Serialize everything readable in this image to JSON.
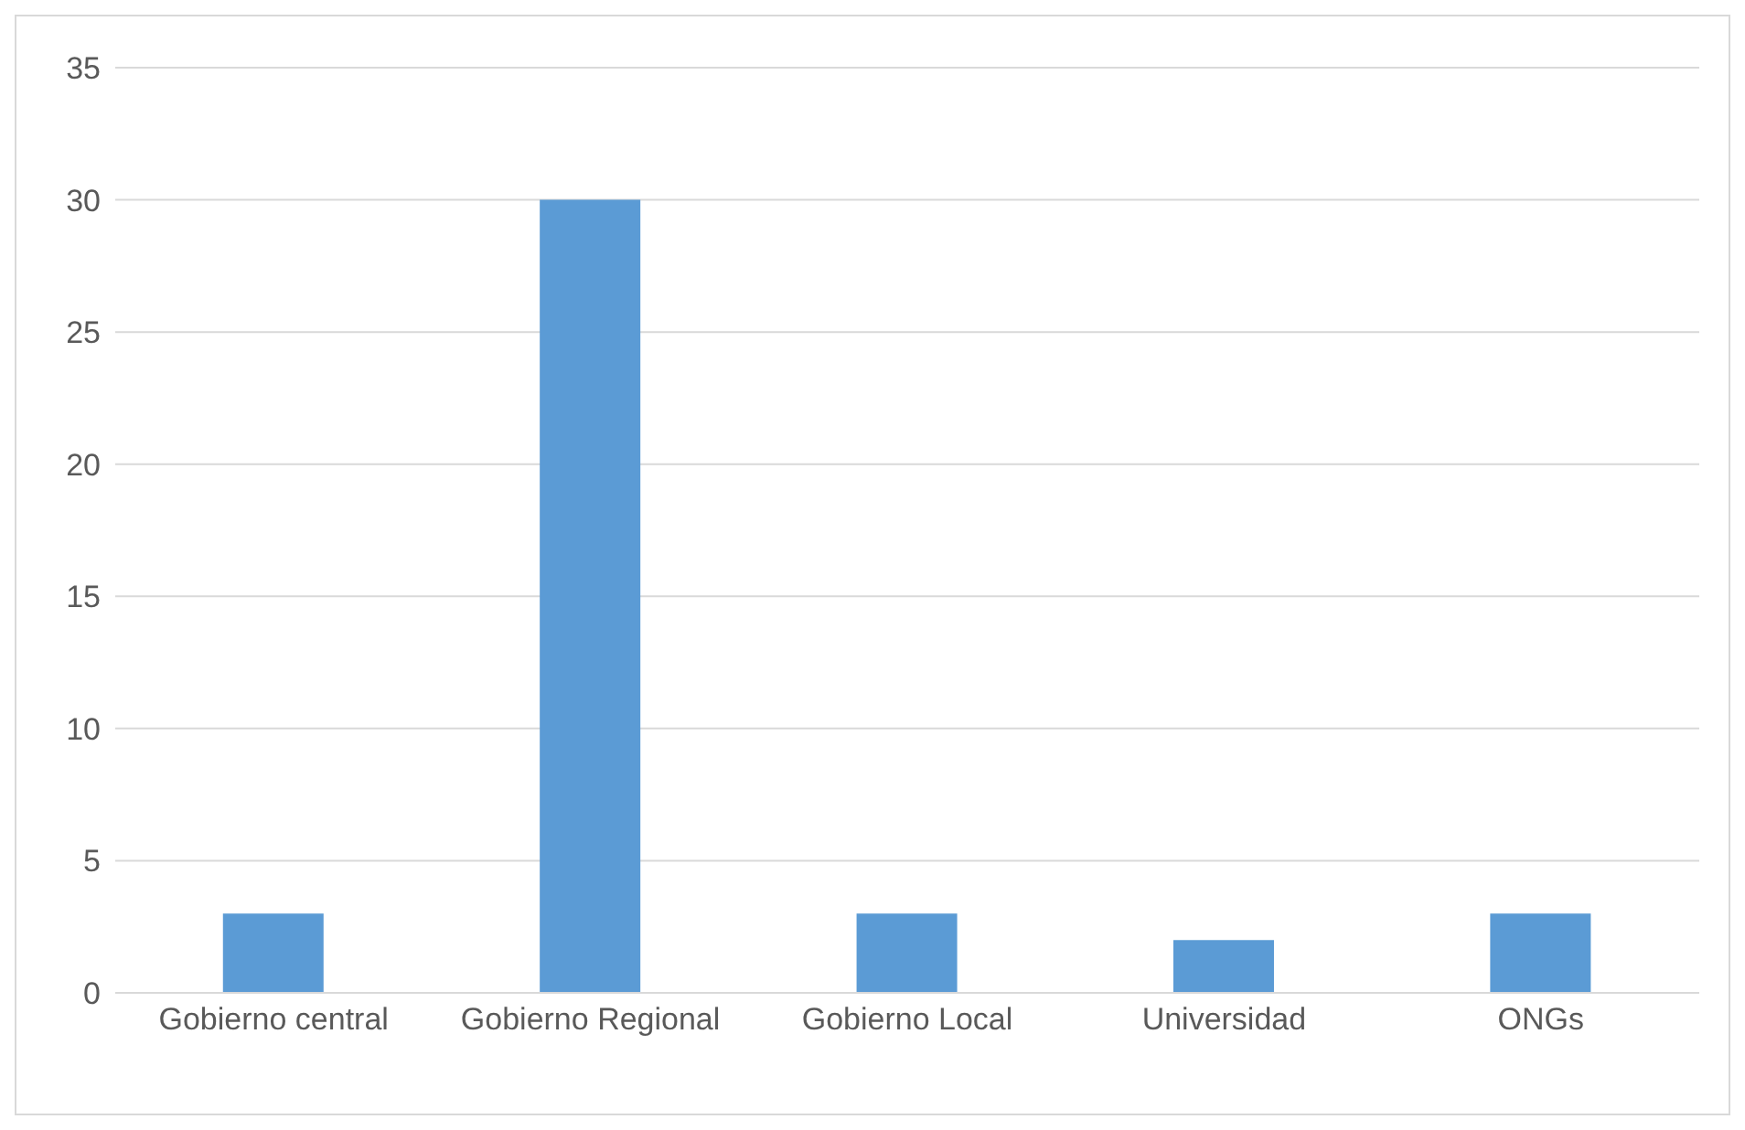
{
  "chart_data": {
    "type": "bar",
    "categories": [
      "Gobierno central",
      "Gobierno Regional",
      "Gobierno Local",
      "Universidad",
      "ONGs"
    ],
    "values": [
      3,
      30,
      3,
      2,
      3
    ],
    "color": "#5b9bd5",
    "ylim": [
      0,
      35
    ],
    "yticks": [
      0,
      5,
      10,
      15,
      20,
      25,
      30,
      35
    ],
    "grid": "y"
  }
}
